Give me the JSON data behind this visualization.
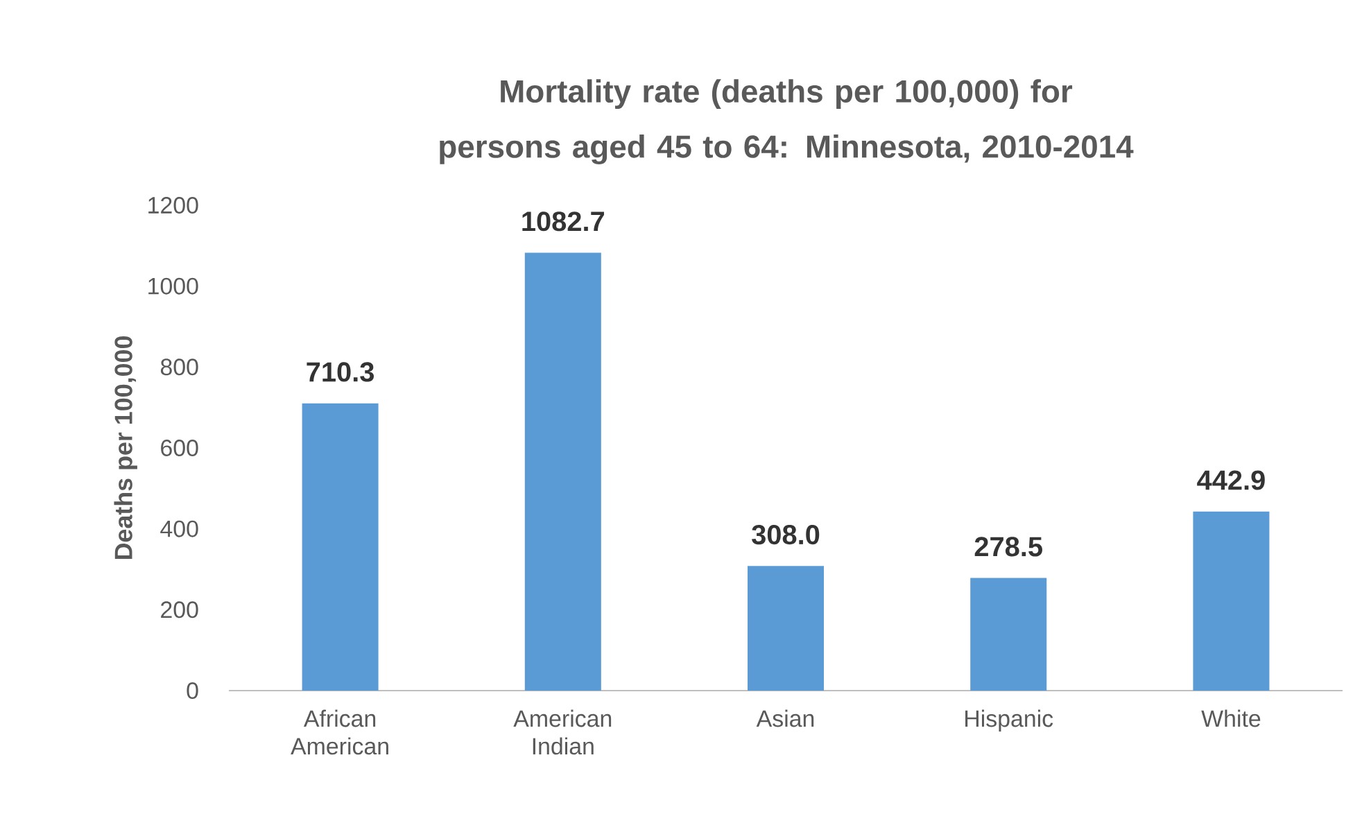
{
  "chart_data": {
    "type": "bar",
    "title": "Mortality rate (deaths per 100,000) for persons aged 45 to 64: Minnesota, 2010-2014",
    "ylabel": "Deaths per 100,000",
    "categories": [
      "African American",
      "American Indian",
      "Asian",
      "Hispanic",
      "White"
    ],
    "values": [
      710.3,
      1082.7,
      308.0,
      278.5,
      442.9
    ],
    "value_labels": [
      "710.3",
      "1082.7",
      "308.0",
      "278.5",
      "442.9"
    ],
    "color": "#5b9bd5",
    "ylim": [
      0,
      1200
    ],
    "yticks": [
      0,
      200,
      400,
      600,
      800,
      1000,
      1200
    ]
  }
}
